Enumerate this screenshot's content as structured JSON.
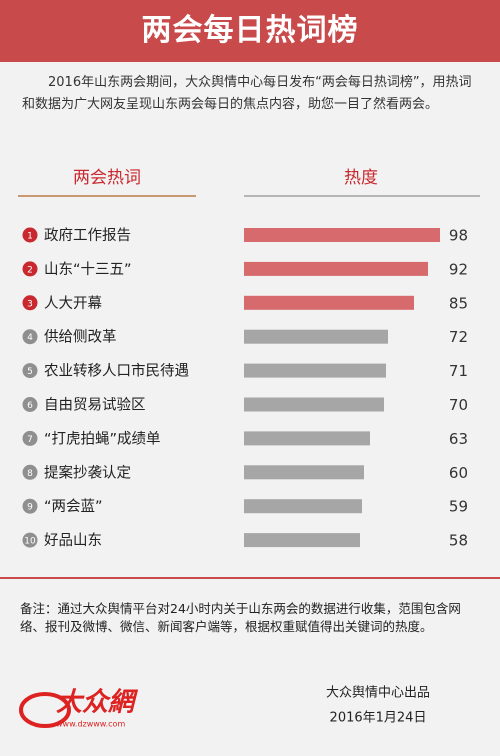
{
  "header": {
    "title": "两会每日热词榜"
  },
  "intro": "2016年山东两会期间，大众舆情中心每日发布“两会每日热词榜”，用热词和数据为广大网友呈现山东两会每日的焦点内容，助您一目了然看两会。",
  "chart_data": {
    "type": "bar",
    "orientation": "horizontal",
    "category_header": "两会热词",
    "value_header": "热度",
    "ranks": [
      1,
      2,
      3,
      4,
      5,
      6,
      7,
      8,
      9,
      10
    ],
    "categories": [
      "政府工作报告",
      "山东“十三五”",
      "人大开幕",
      "供给侧改革",
      "农业转移人口市民待遇",
      "自由贸易试验区",
      "“打虎拍蝇”成绩单",
      "提案抄袭认定",
      "“两会蓝”",
      "好品山东"
    ],
    "values": [
      98,
      92,
      85,
      72,
      71,
      70,
      63,
      60,
      59,
      58
    ],
    "colors": [
      "#d76a6c",
      "#d76a6c",
      "#d76a6c",
      "#a6a6a6",
      "#a6a6a6",
      "#a6a6a6",
      "#a6a6a6",
      "#a6a6a6",
      "#a6a6a6",
      "#a6a6a6"
    ],
    "rank_colors": [
      "#c8282e",
      "#c8282e",
      "#c8282e",
      "#8f8f8f",
      "#8f8f8f",
      "#8f8f8f",
      "#8f8f8f",
      "#8f8f8f",
      "#8f8f8f",
      "#8f8f8f"
    ],
    "xlim": [
      0,
      100
    ]
  },
  "footer": {
    "note": "备注：通过大众舆情平台对24小时内关于山东两会的数据进行收集，范围包含网络、报刊及微博、微信、新闻客户端等，根据权重赋值得出关键词的热度。",
    "logo": "大众網",
    "logo_url": "www.dzwww.com",
    "publisher": "大众舆情中心出品",
    "date": "2016年1月24日"
  }
}
